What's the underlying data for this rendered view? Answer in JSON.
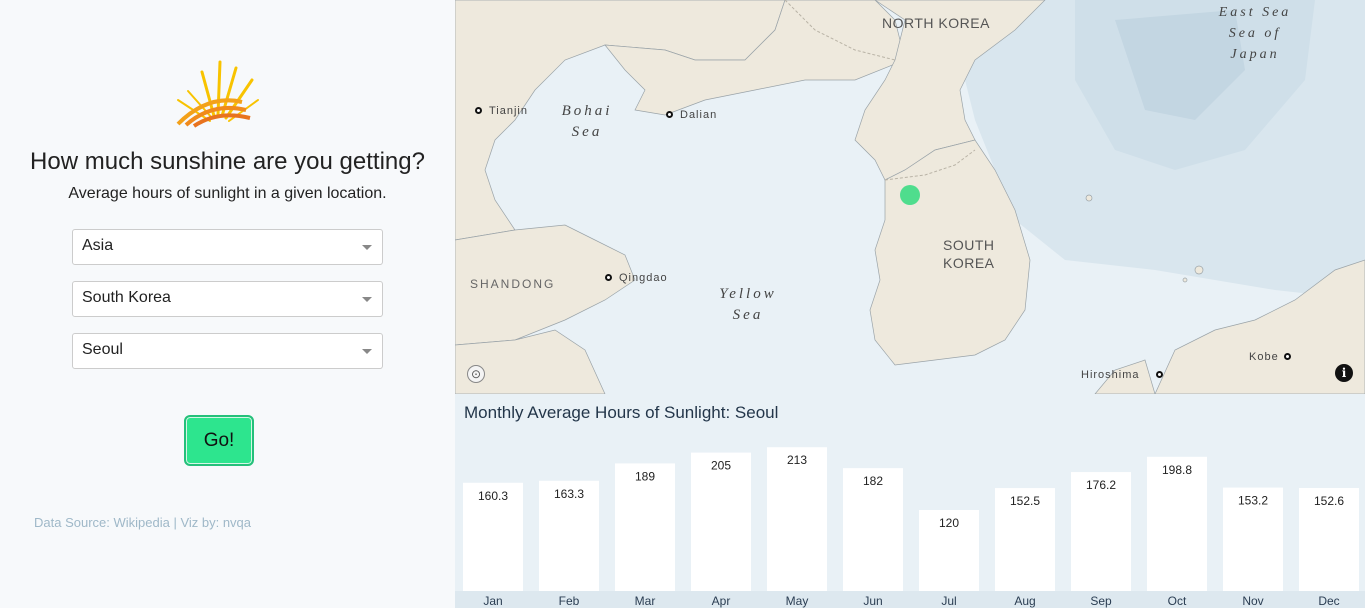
{
  "left_panel": {
    "headline": "How much sunshine are you getting?",
    "subline": "Average hours of sunlight in a given location.",
    "continent_select": {
      "value": "Asia"
    },
    "country_select": {
      "value": "South Korea"
    },
    "city_select": {
      "value": "Seoul"
    },
    "go_button": "Go!",
    "credits": "Data Source: Wikipedia | Viz by: nvqa",
    "logo_icon": "sun-icon"
  },
  "map": {
    "labels": {
      "north_korea": "NORTH KOREA",
      "south_korea": "SOUTH KOREA",
      "bohai_sea": "Bohai Sea",
      "yellow_sea": "Yellow Sea",
      "east_sea": "East Sea Sea of Japan",
      "shandong": "SHANDONG"
    },
    "cities": {
      "tianjin": "Tianjin",
      "dalian": "Dalian",
      "qingdao": "Qingdao",
      "hiroshima": "Hiroshima",
      "kobe": "Kobe"
    },
    "selected_location": "Seoul",
    "marker_color": "#3ddc84",
    "attribution_icon": "compass-icon",
    "info_icon": "info-icon"
  },
  "chart_data": {
    "type": "bar",
    "title": "Monthly Average Hours of Sunlight: Seoul",
    "categories": [
      "Jan",
      "Feb",
      "Mar",
      "Apr",
      "May",
      "Jun",
      "Jul",
      "Aug",
      "Sep",
      "Oct",
      "Nov",
      "Dec"
    ],
    "values": [
      160.3,
      163.3,
      189,
      205,
      213,
      182,
      120,
      152.5,
      176.2,
      198.8,
      153.2,
      152.6
    ],
    "value_labels": [
      "160.3",
      "163.3",
      "189",
      "205",
      "213",
      "182",
      "120",
      "152.5",
      "176.2",
      "198.8",
      "153.2",
      "152.6"
    ],
    "xlabel": "",
    "ylabel": "",
    "ylim": [
      0,
      220
    ],
    "grid": false,
    "bar_color": "#ffffff"
  }
}
